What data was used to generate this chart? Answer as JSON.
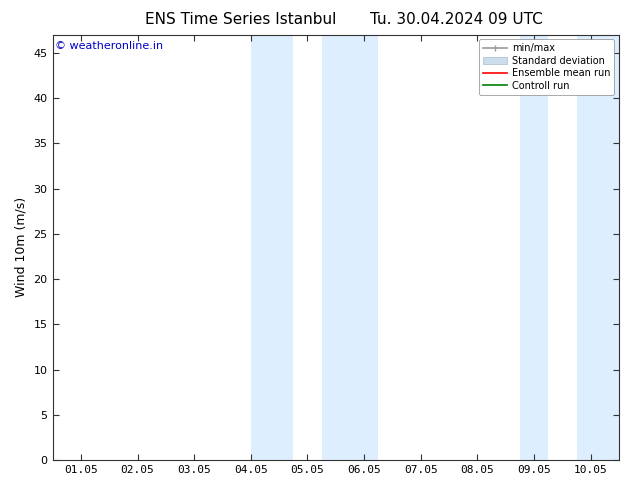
{
  "title_left": "ENS Time Series Istanbul",
  "title_right": "Tu. 30.04.2024 09 UTC",
  "ylabel": "Wind 10m (m/s)",
  "ylim": [
    0,
    47
  ],
  "yticks": [
    0,
    5,
    10,
    15,
    20,
    25,
    30,
    35,
    40,
    45
  ],
  "xtick_labels": [
    "01.05",
    "02.05",
    "03.05",
    "04.05",
    "05.05",
    "06.05",
    "07.05",
    "08.05",
    "09.05",
    "10.05"
  ],
  "xmin": 0,
  "xmax": 10,
  "shaded_bands": [
    {
      "x_start": 3.5,
      "x_end": 4.25,
      "color": "#ddeeff"
    },
    {
      "x_start": 4.75,
      "x_end": 5.75,
      "color": "#ddeeff"
    },
    {
      "x_start": 8.25,
      "x_end": 8.75,
      "color": "#ddeeff"
    },
    {
      "x_start": 9.25,
      "x_end": 10.0,
      "color": "#ddeeff"
    }
  ],
  "watermark_text": "© weatheronline.in",
  "watermark_color": "#0000cc",
  "watermark_fontsize": 8,
  "bg_color": "#ffffff",
  "plot_bg_color": "#ffffff",
  "legend_items": [
    {
      "label": "min/max",
      "color": "#999999",
      "lw": 1.2,
      "style": "minmax"
    },
    {
      "label": "Standard deviation",
      "color": "#ccddee",
      "lw": 8,
      "style": "band"
    },
    {
      "label": "Ensemble mean run",
      "color": "#ff0000",
      "lw": 1.2,
      "style": "line"
    },
    {
      "label": "Controll run",
      "color": "#008000",
      "lw": 1.2,
      "style": "line"
    }
  ],
  "title_fontsize": 11,
  "axis_fontsize": 9,
  "tick_fontsize": 8
}
